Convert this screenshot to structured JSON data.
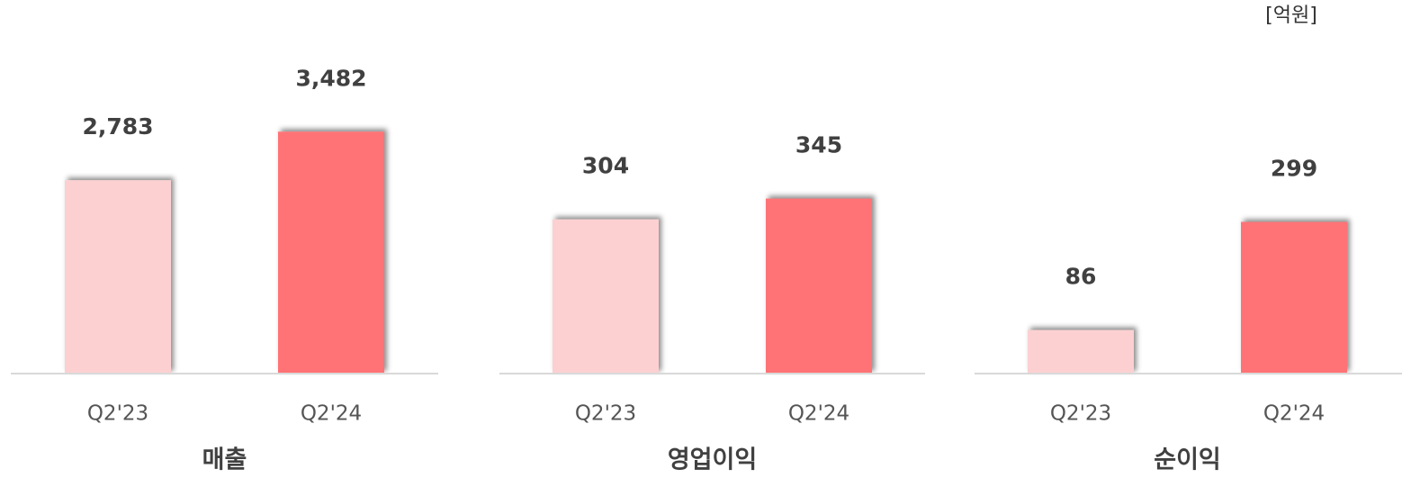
{
  "unit": "[억원]",
  "chart_data": [
    {
      "type": "bar",
      "title": "매출",
      "categories": [
        "Q2'23",
        "Q2'24"
      ],
      "values": [
        2783,
        3482
      ],
      "value_labels": [
        "2,783",
        "3,482"
      ],
      "colors": [
        "#fcd0d1",
        "#ff7376"
      ],
      "ylim": [
        0,
        4600
      ]
    },
    {
      "type": "bar",
      "title": "영업이익",
      "categories": [
        "Q2'23",
        "Q2'24"
      ],
      "values": [
        304,
        345
      ],
      "colors": [
        "#fcd0d1",
        "#ff7376"
      ],
      "ylim": [
        0,
        630
      ]
    },
    {
      "type": "bar",
      "title": "순이익",
      "categories": [
        "Q2'23",
        "Q2'24"
      ],
      "values": [
        86,
        299
      ],
      "colors": [
        "#fcd0d1",
        "#ff7376"
      ],
      "ylim": [
        0,
        630
      ]
    }
  ]
}
